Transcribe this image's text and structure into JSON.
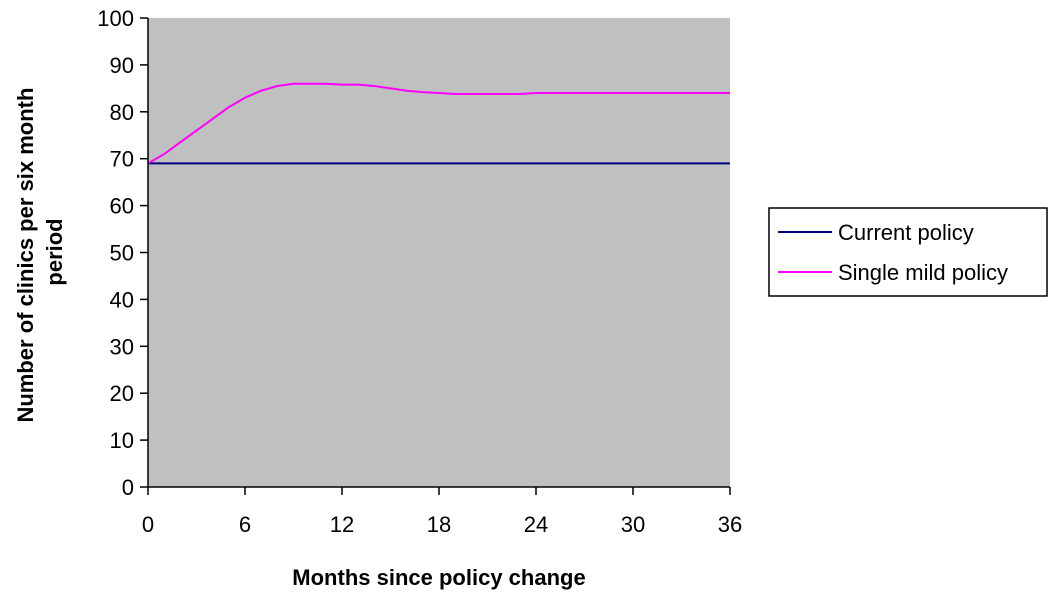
{
  "chart_data": {
    "type": "line",
    "title": "",
    "xlabel": "Months since policy change",
    "ylabel_lines": [
      "Number of clinics per six month",
      "period"
    ],
    "xlim": [
      0,
      36
    ],
    "ylim": [
      0,
      100
    ],
    "x_ticks": [
      0,
      6,
      12,
      18,
      24,
      30,
      36
    ],
    "y_ticks": [
      0,
      10,
      20,
      30,
      40,
      50,
      60,
      70,
      80,
      90,
      100
    ],
    "grid": false,
    "plot_background": "#c0c0c0",
    "legend_position": "right",
    "series": [
      {
        "name": "Current policy",
        "color": "#000080",
        "x": [
          0,
          6,
          12,
          18,
          24,
          30,
          36
        ],
        "y": [
          69,
          69,
          69,
          69,
          69,
          69,
          69
        ]
      },
      {
        "name": "Single mild policy",
        "color": "#ff00ff",
        "x": [
          0,
          1,
          2,
          3,
          4,
          5,
          6,
          7,
          8,
          9,
          10,
          11,
          12,
          13,
          14,
          15,
          16,
          17,
          18,
          19,
          20,
          21,
          22,
          23,
          24,
          27,
          30,
          33,
          36
        ],
        "y": [
          69,
          71,
          73.5,
          76,
          78.5,
          81,
          83,
          84.5,
          85.5,
          86,
          86,
          86,
          85.8,
          85.8,
          85.5,
          85,
          84.5,
          84.2,
          84,
          83.8,
          83.8,
          83.8,
          83.8,
          83.8,
          84,
          84,
          84,
          84,
          84
        ]
      }
    ]
  }
}
